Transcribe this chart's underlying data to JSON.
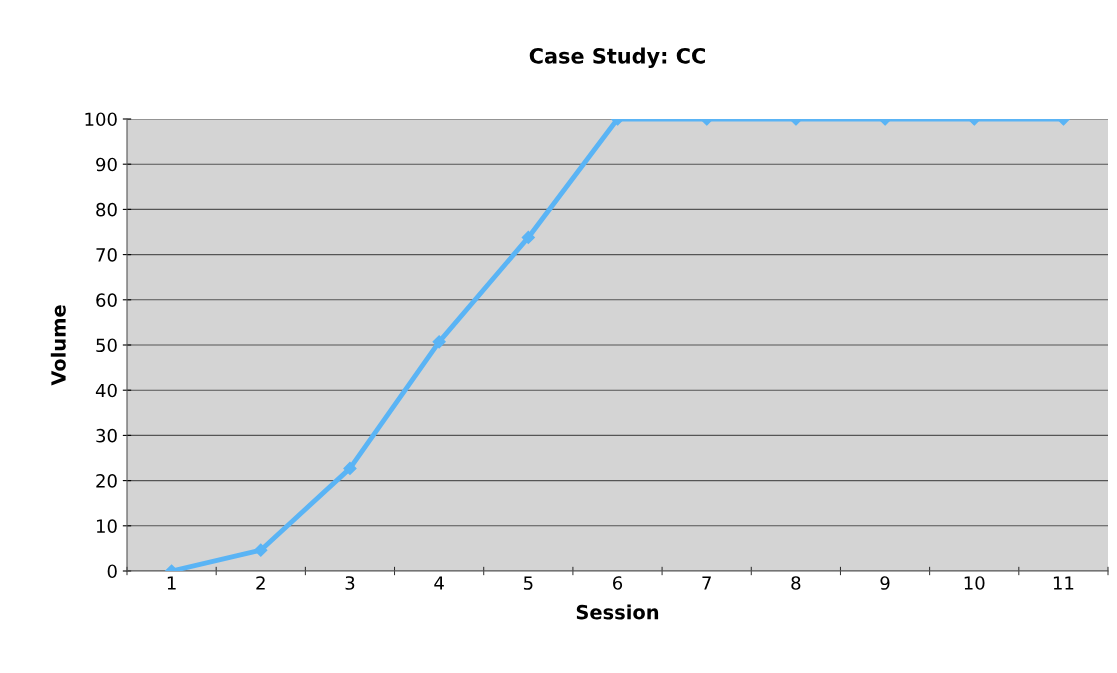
{
  "chart_data": {
    "type": "line",
    "title": "Case Study: CC",
    "xlabel": "Session",
    "ylabel": "Volume",
    "categories": [
      "1",
      "2",
      "3",
      "4",
      "5",
      "6",
      "7",
      "8",
      "9",
      "10",
      "11"
    ],
    "series": [
      {
        "color": "#5ab4f5",
        "values": [
          0,
          4.6,
          22.7,
          50.7,
          73.8,
          100,
          100,
          100,
          100,
          100,
          100
        ]
      }
    ],
    "ylim": [
      0,
      100
    ],
    "yticks": [
      0,
      10,
      20,
      30,
      40,
      50,
      60,
      70,
      80,
      90,
      100
    ],
    "grid": "y",
    "marker": "diamond",
    "line_style": "solid",
    "legend": false
  }
}
